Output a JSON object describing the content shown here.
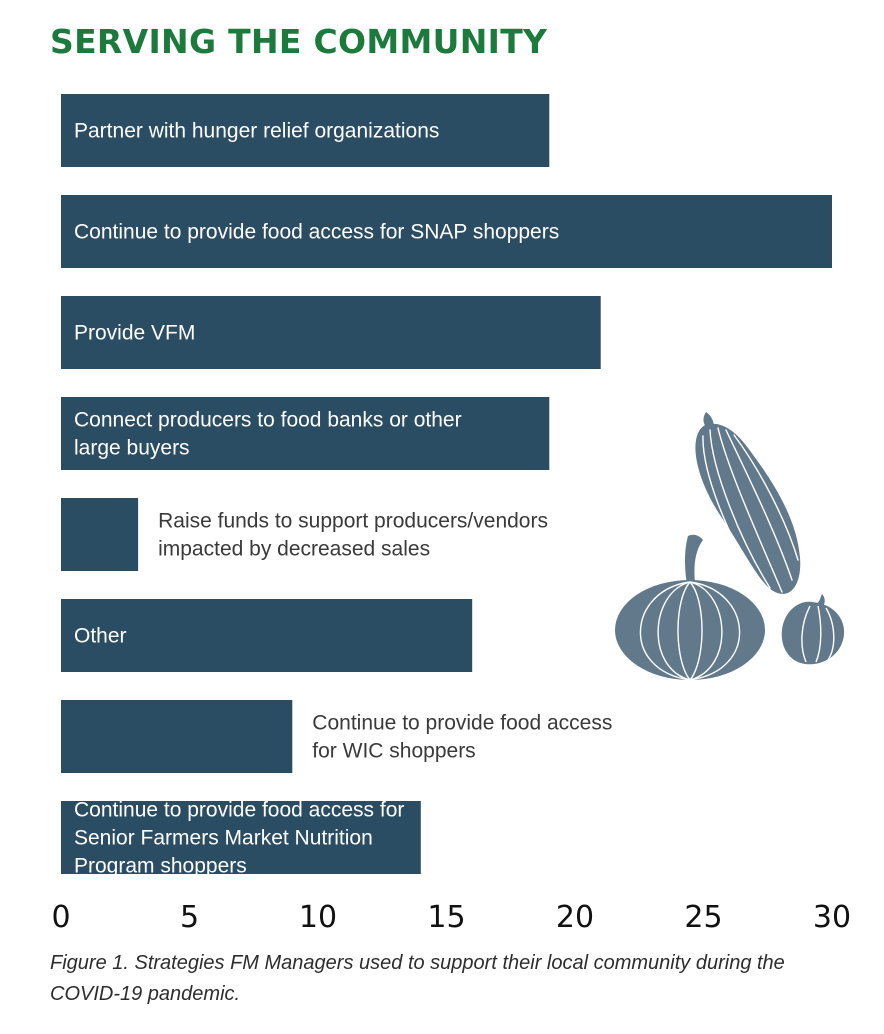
{
  "chart_data": {
    "type": "bar",
    "orientation": "horizontal",
    "title": "SERVING THE COMMUNITY",
    "categories": [
      "Partner with hunger relief organizations",
      "Continue to provide food access for SNAP shoppers",
      "Provide VFM",
      "Connect producers to food banks or other large buyers",
      "Raise funds to support producers/vendors impacted by decreased sales",
      "Other",
      "Continue to provide food access for WIC shoppers",
      "Continue to provide food access for Senior Farmers Market Nutrition Program shoppers"
    ],
    "label_lines": [
      [
        "Partner with hunger relief organizations"
      ],
      [
        "Continue to provide food access for SNAP shoppers"
      ],
      [
        "Provide VFM"
      ],
      [
        "Connect producers to food banks or other",
        "large buyers"
      ],
      [
        "Raise funds to support producers/vendors",
        "impacted by decreased sales"
      ],
      [
        "Other"
      ],
      [
        "Continue to provide food access",
        "for WIC shoppers"
      ],
      [
        "Continue to provide food access for",
        "Senior Farmers Market Nutrition",
        "Program shoppers"
      ]
    ],
    "values": [
      19,
      30,
      21,
      19,
      3,
      16,
      9,
      14
    ],
    "xlim": [
      0,
      30
    ],
    "xticks": [
      "0",
      "5",
      "10",
      "15",
      "20",
      "25",
      "30"
    ],
    "grid": false,
    "bar_color": "#2b4d64"
  },
  "caption": "Figure 1. Strategies FM Managers used to support their local community during the COVID-19 pandemic.",
  "colors": {
    "title": "#1b7a3c",
    "bar": "#2b4d64",
    "illustration": "#62798c"
  }
}
